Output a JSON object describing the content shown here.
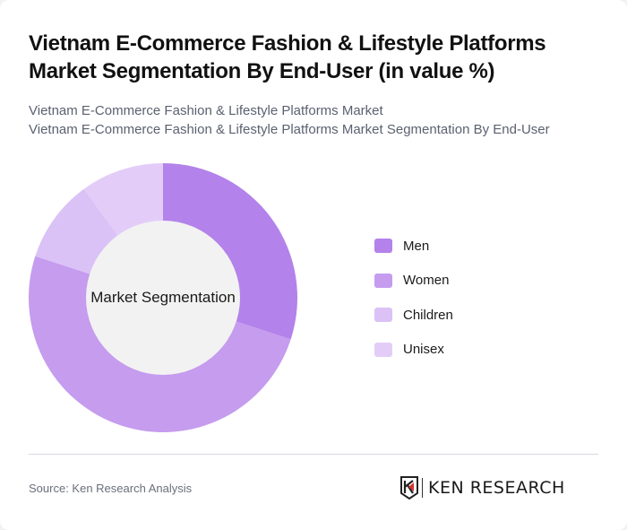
{
  "header": {
    "title": "Vietnam E-Commerce Fashion & Lifestyle Platforms Market Segmentation By End-User (in value %)",
    "subtitle_line1": "Vietnam E-Commerce Fashion & Lifestyle Platforms Market",
    "subtitle_line2": "Vietnam E-Commerce Fashion & Lifestyle Platforms Market Segmentation By End-User"
  },
  "chart": {
    "center_label": "Market Segmentation"
  },
  "legend": {
    "items": [
      {
        "label": "Men",
        "color": "#b382ea"
      },
      {
        "label": "Women",
        "color": "#c59cee"
      },
      {
        "label": "Children",
        "color": "#dbc2f6"
      },
      {
        "label": "Unisex",
        "color": "#e3cdf8"
      }
    ]
  },
  "footer": {
    "source": "Source: Ken Research Analysis",
    "logo_text": "KEN RESEARCH"
  },
  "chart_data": {
    "type": "pie",
    "variant": "donut",
    "title": "Vietnam E-Commerce Fashion & Lifestyle Platforms Market Segmentation By End-User (in value %)",
    "center_label": "Market Segmentation",
    "categories": [
      "Men",
      "Women",
      "Children",
      "Unisex"
    ],
    "values": [
      30,
      50,
      10,
      10
    ],
    "unit": "%",
    "colors": [
      "#b382ea",
      "#c59cee",
      "#dbc2f6",
      "#e3cdf8"
    ],
    "legend_position": "right",
    "start_angle": "top, clockwise"
  }
}
